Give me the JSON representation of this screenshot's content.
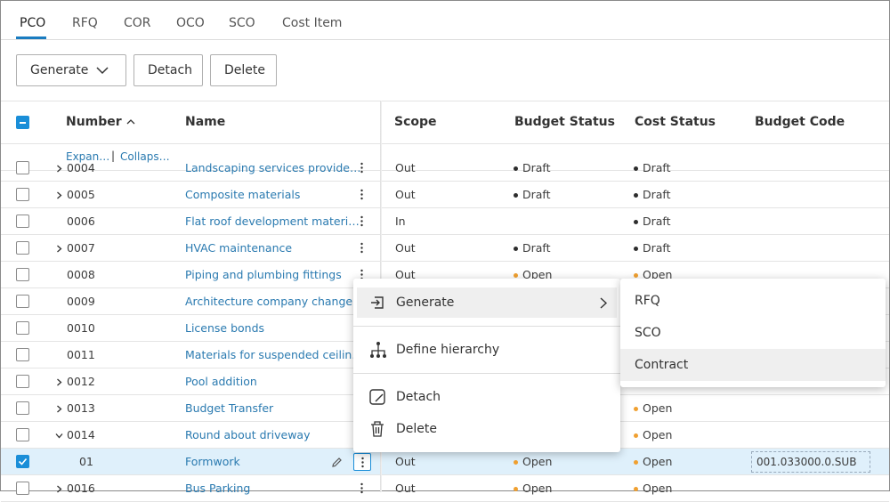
{
  "tabs": [
    "PCO",
    "RFQ",
    "COR",
    "OCO",
    "SCO",
    "Cost Item"
  ],
  "active_tab": 0,
  "toolbar": {
    "generate": "Generate",
    "detach": "Detach",
    "delete": "Delete"
  },
  "table": {
    "headers": {
      "number": "Number",
      "name": "Name",
      "scope": "Scope",
      "budget_status": "Budget Status",
      "cost_status": "Cost Status",
      "budget_code": "Budget Code"
    },
    "expand_all": "Expan…",
    "collapse_all": "Collaps…",
    "status_colors": {
      "Draft": "#2d2d2d",
      "Open": "#f0a030"
    },
    "rows": [
      {
        "number": "0004",
        "name": "Landscaping services provide…",
        "scope": "Out",
        "budget_status": "Draft",
        "cost_status": "Draft",
        "expander": "collapsed"
      },
      {
        "number": "0005",
        "name": "Composite materials",
        "scope": "Out",
        "budget_status": "Draft",
        "cost_status": "Draft",
        "expander": "collapsed"
      },
      {
        "number": "0006",
        "name": "Flat roof development materi…",
        "scope": "In",
        "cost_status": "Draft"
      },
      {
        "number": "0007",
        "name": "HVAC maintenance",
        "scope": "Out",
        "budget_status": "Draft",
        "cost_status": "Draft",
        "expander": "collapsed"
      },
      {
        "number": "0008",
        "name": "Piping and plumbing fittings",
        "scope": "Out",
        "budget_status": "Open",
        "cost_status": "Open"
      },
      {
        "number": "0009",
        "name": "Architecture company change"
      },
      {
        "number": "0010",
        "name": "License bonds"
      },
      {
        "number": "0011",
        "name": "Materials for suspended ceilin…"
      },
      {
        "number": "0012",
        "name": "Pool addition",
        "expander": "collapsed"
      },
      {
        "number": "0013",
        "name": "Budget Transfer",
        "cost_status": "Open",
        "expander": "collapsed"
      },
      {
        "number": "0014",
        "name": "Round about driveway",
        "cost_status": "Open",
        "expander": "expanded"
      },
      {
        "number": "01",
        "name": "Formwork",
        "scope": "Out",
        "budget_status": "Open",
        "cost_status": "Open",
        "budget_code": "001.033000.0.SUB",
        "level": 1,
        "selected": true
      },
      {
        "number": "0016",
        "name": "Bus Parking",
        "scope": "Out",
        "budget_status": "Open",
        "cost_status": "Open",
        "expander": "collapsed"
      }
    ]
  },
  "context_menu": {
    "generate": "Generate",
    "define_hierarchy": "Define hierarchy",
    "detach": "Detach",
    "delete": "Delete"
  },
  "submenu": [
    "RFQ",
    "SCO",
    "Contract"
  ]
}
